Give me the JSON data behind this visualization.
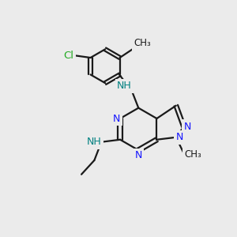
{
  "bg_color": "#ebebeb",
  "bond_color": "#1a1a1a",
  "n_color": "#1414ff",
  "cl_color": "#22aa22",
  "nh_color": "#008080",
  "line_width": 1.6,
  "figsize": [
    3.0,
    3.0
  ],
  "dpi": 100,
  "xlim": [
    0,
    10
  ],
  "ylim": [
    0,
    10
  ]
}
